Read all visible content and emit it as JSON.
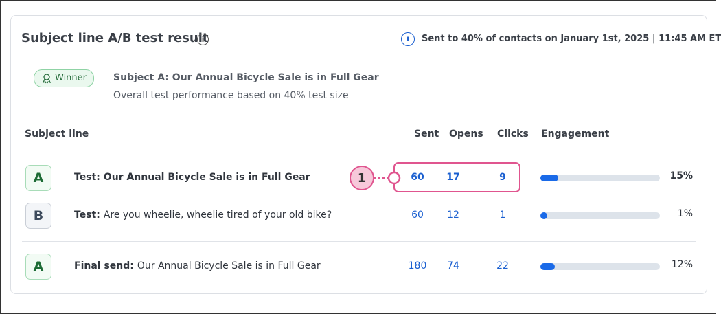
{
  "header": {
    "title": "Subject line A/B test result",
    "info_icon": "i",
    "sent_note": "Sent to 40% of contacts on January 1st, 2025 | 11:45 AM ET"
  },
  "winner": {
    "badge": "Winner",
    "subject": "Subject A: Our Annual Bicycle Sale is in Full Gear",
    "note": "Overall test performance based on 40% test size"
  },
  "table": {
    "columns": [
      "Subject line",
      "Sent",
      "Opens",
      "Clicks",
      "Engagement"
    ],
    "rows": [
      {
        "badge": "A",
        "prefix": "Test:",
        "subject": "Our Annual Bicycle Sale is in Full Gear",
        "subject_bold": true,
        "sent": 60,
        "opens": 17,
        "clicks": 9,
        "engagement": {
          "value": 15,
          "label": "15%"
        }
      },
      {
        "badge": "B",
        "prefix": "Test:",
        "subject": "Are you wheelie, wheelie tired of your old bike?",
        "subject_bold": false,
        "sent": 60,
        "opens": 12,
        "clicks": 1,
        "engagement": {
          "value": 1,
          "label": "1%"
        }
      },
      {
        "badge": "A",
        "prefix": "Final send:",
        "subject": "Our Annual Bicycle Sale is in Full Gear",
        "subject_bold": false,
        "sent": 180,
        "opens": 74,
        "clicks": 22,
        "engagement": {
          "value": 12,
          "label": "12%"
        }
      }
    ]
  },
  "callout": {
    "label": "1"
  }
}
